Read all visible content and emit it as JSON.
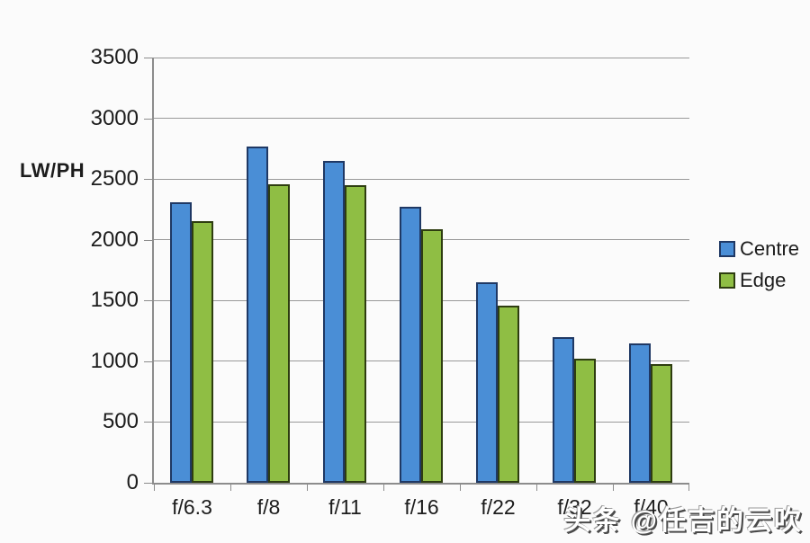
{
  "chart_data": {
    "type": "bar",
    "title": "",
    "ylabel": "LW/PH",
    "xlabel": "",
    "categories": [
      "f/6.3",
      "f/8",
      "f/11",
      "f/16",
      "f/22",
      "f/32",
      "f/40"
    ],
    "series": [
      {
        "name": "Centre",
        "color": "#4a8ed6",
        "border_color": "#1f3864",
        "values": [
          2310,
          2770,
          2650,
          2270,
          1650,
          1200,
          1150
        ]
      },
      {
        "name": "Edge",
        "color": "#8fbe44",
        "border_color": "#2e3d10",
        "values": [
          2150,
          2460,
          2450,
          2090,
          1460,
          1020,
          980
        ]
      }
    ],
    "ylim": [
      0,
      3500
    ],
    "ytick_step": 500,
    "grid": true,
    "legend_position": "right-middle",
    "axis_color": "#8c8c8c",
    "text_color": "#1c1c1c"
  },
  "watermark": {
    "text": "头条 @任吉的云吹"
  }
}
